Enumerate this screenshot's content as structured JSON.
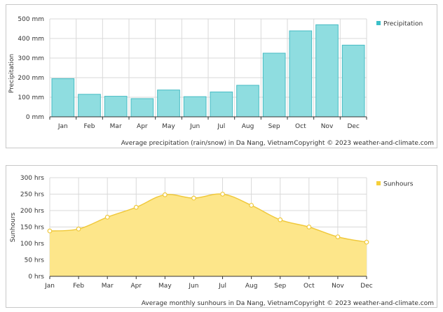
{
  "chart_data": [
    {
      "type": "bar",
      "id": "precipitation",
      "categories": [
        "Jan",
        "Feb",
        "Mar",
        "Apr",
        "May",
        "Jun",
        "Jul",
        "Aug",
        "Sep",
        "Oct",
        "Nov",
        "Dec"
      ],
      "series": [
        {
          "name": "Precipitation",
          "values": [
            195,
            115,
            105,
            93,
            137,
            103,
            127,
            161,
            325,
            439,
            470,
            366
          ],
          "color": "#8fdde0",
          "stroke": "#47bcc4"
        }
      ],
      "ylim": [
        0,
        500
      ],
      "yticks": [
        0,
        100,
        200,
        300,
        400,
        500
      ],
      "ytick_labels": [
        "0 mm",
        "100 mm",
        "200 mm",
        "300 mm",
        "400 mm",
        "500 mm"
      ],
      "ylabel": "Precipitation",
      "legend": "Precipitation",
      "legend_color": "#3bbfc8",
      "caption": "Average precipitation (rain/snow) in Da Nang, Vietnam",
      "copyright": "Copyright © 2023  weather-and-climate.com",
      "grid": true
    },
    {
      "type": "area",
      "id": "sunhours",
      "categories": [
        "Jan",
        "Feb",
        "Mar",
        "Apr",
        "May",
        "Jun",
        "Jul",
        "Aug",
        "Sep",
        "Oct",
        "Nov",
        "Dec"
      ],
      "series": [
        {
          "name": "Sunhours",
          "values": [
            138,
            144,
            180,
            210,
            248,
            238,
            250,
            216,
            172,
            150,
            120,
            104
          ],
          "color": "#fde68a",
          "stroke": "#f0c93c"
        }
      ],
      "ylim": [
        0,
        300
      ],
      "yticks": [
        0,
        50,
        100,
        150,
        200,
        250,
        300
      ],
      "ytick_labels": [
        "0 hrs",
        "50 hrs",
        "100 hrs",
        "150 hrs",
        "200 hrs",
        "250 hrs",
        "300 hrs"
      ],
      "ylabel": "Sunhours",
      "legend": "Sunhours",
      "legend_color": "#f5cf3a",
      "caption": "Average monthly sunhours in Da Nang, Vietnam",
      "copyright": "Copyright © 2023  weather-and-climate.com",
      "grid": true
    }
  ]
}
